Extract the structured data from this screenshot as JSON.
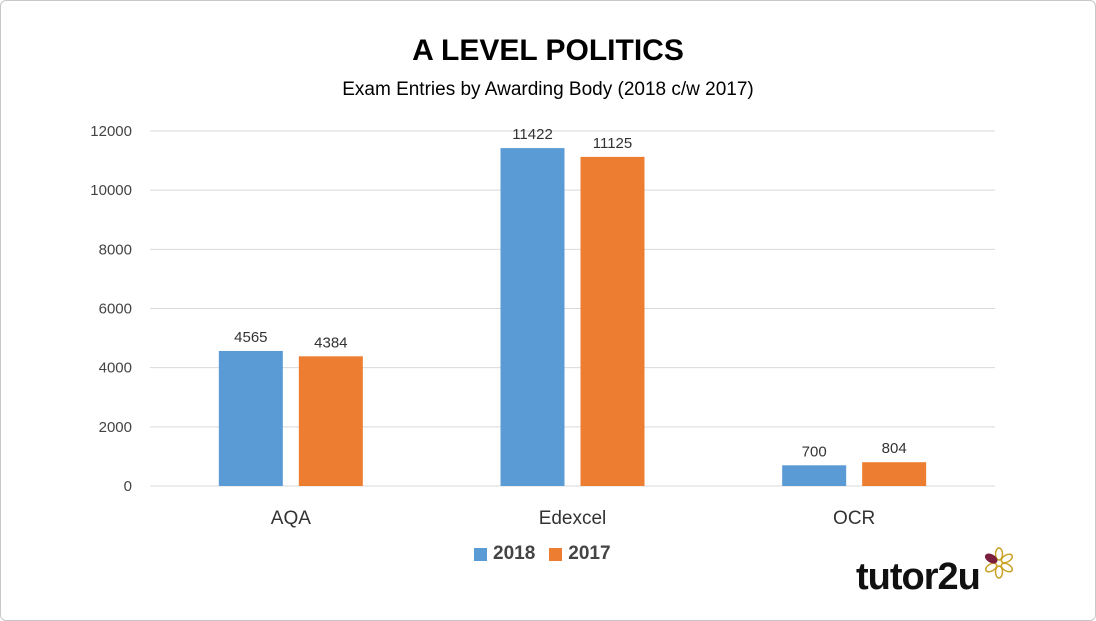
{
  "chart_data": {
    "type": "bar",
    "title": "A LEVEL POLITICS",
    "subtitle": "Exam Entries by Awarding Body (2018 c/w 2017)",
    "categories": [
      "AQA",
      "Edexcel",
      "OCR"
    ],
    "series": [
      {
        "name": "2018",
        "color": "#5b9bd5",
        "values": [
          4565,
          11422,
          700
        ]
      },
      {
        "name": "2017",
        "color": "#ed7d31",
        "values": [
          4384,
          11125,
          804
        ]
      }
    ],
    "ylim": [
      0,
      12000
    ],
    "yticks": [
      0,
      2000,
      4000,
      6000,
      8000,
      10000,
      12000
    ],
    "grid": true,
    "legend_position": "bottom"
  },
  "branding": {
    "logo_text": "tutor2u",
    "logo_icon": "flower-icon"
  }
}
